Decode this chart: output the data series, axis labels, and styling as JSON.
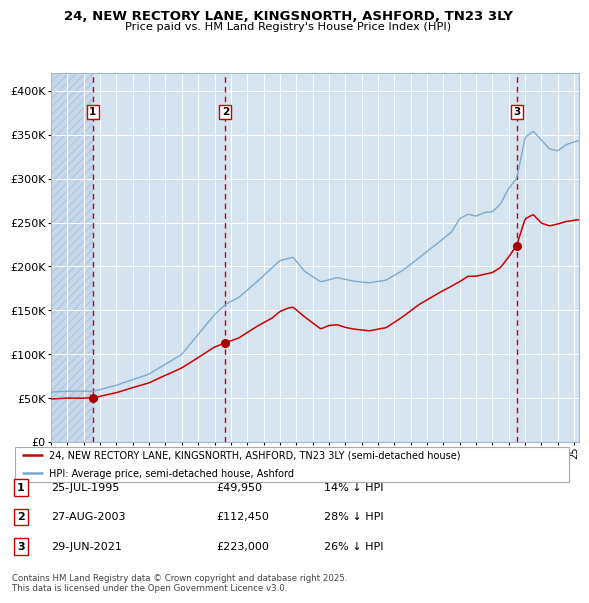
{
  "title_line1": "24, NEW RECTORY LANE, KINGSNORTH, ASHFORD, TN23 3LY",
  "title_line2": "Price paid vs. HM Land Registry's House Price Index (HPI)",
  "legend_red": "24, NEW RECTORY LANE, KINGSNORTH, ASHFORD, TN23 3LY (semi-detached house)",
  "legend_blue": "HPI: Average price, semi-detached house, Ashford",
  "sale1_date": "25-JUL-1995",
  "sale1_price": 49950,
  "sale1_pct": "14% ↓ HPI",
  "sale2_date": "27-AUG-2003",
  "sale2_price": 112450,
  "sale2_pct": "28% ↓ HPI",
  "sale3_date": "29-JUN-2021",
  "sale3_price": 223000,
  "sale3_pct": "26% ↓ HPI",
  "footnote": "Contains HM Land Registry data © Crown copyright and database right 2025.\nThis data is licensed under the Open Government Licence v3.0.",
  "ylim": [
    0,
    420000
  ],
  "yticks": [
    0,
    50000,
    100000,
    150000,
    200000,
    250000,
    300000,
    350000,
    400000
  ],
  "plot_bg": "#dce8f2",
  "red_color": "#cc0000",
  "blue_color": "#7aabcf",
  "vline_color": "#cc0000",
  "marker_color": "#aa0000",
  "sale1_year": 1995.56,
  "sale2_year": 2003.66,
  "sale3_year": 2021.49,
  "xstart": 1993.0,
  "xend": 2025.3
}
